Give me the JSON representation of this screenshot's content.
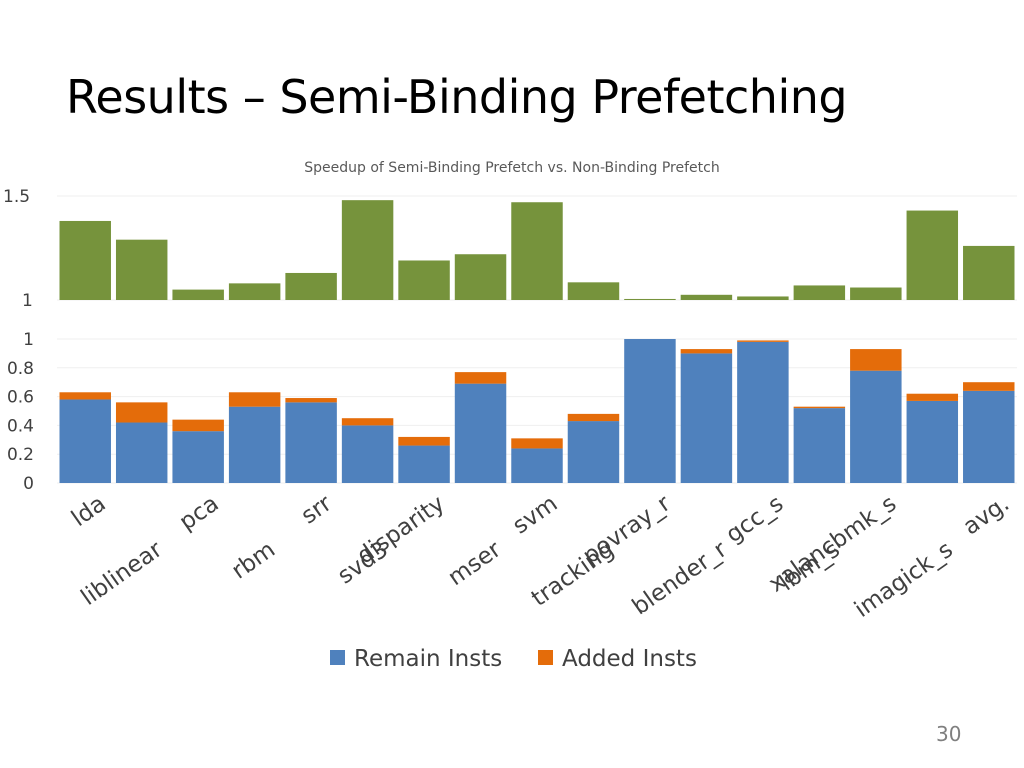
{
  "slide": {
    "title": "Results – Semi-Binding Prefetching",
    "page_number": "30"
  },
  "colors": {
    "speedup": "#76933c",
    "remain": "#4f81bd",
    "added": "#e46c0a",
    "grid": "#efefef"
  },
  "chart_data": [
    {
      "type": "bar",
      "title": "Speedup of Semi-Binding Prefetch vs. Non-Binding Prefetch",
      "categories": [
        "lda",
        "liblinear",
        "pca",
        "rbm",
        "srr",
        "svd3",
        "disparity",
        "mser",
        "svm",
        "tracking",
        "povray_r",
        "blender_r",
        "gcc_s",
        "lbm_s",
        "xalancbmk_s",
        "imagick_s",
        "avg."
      ],
      "series": [
        {
          "values": [
            1.38,
            1.29,
            1.05,
            1.08,
            1.13,
            1.48,
            1.19,
            1.22,
            1.47,
            1.085,
            1.005,
            1.025,
            1.017,
            1.07,
            1.06,
            1.43,
            1.26
          ]
        }
      ],
      "ylim": [
        1,
        1.5
      ],
      "yticks": [
        "1",
        "1.5"
      ],
      "grid": true
    },
    {
      "type": "bar",
      "stacked": true,
      "categories": [
        "lda",
        "liblinear",
        "pca",
        "rbm",
        "srr",
        "svd3",
        "disparity",
        "mser",
        "svm",
        "tracking",
        "povray_r",
        "blender_r",
        "gcc_s",
        "lbm_s",
        "xalancbmk_s",
        "imagick_s",
        "avg."
      ],
      "series": [
        {
          "name": "Remain Insts",
          "values": [
            0.58,
            0.42,
            0.36,
            0.53,
            0.56,
            0.4,
            0.26,
            0.69,
            0.24,
            0.43,
            1.0,
            0.9,
            0.98,
            0.52,
            0.78,
            0.57,
            0.64
          ]
        },
        {
          "name": "Added Insts",
          "values": [
            0.05,
            0.14,
            0.08,
            0.1,
            0.03,
            0.05,
            0.06,
            0.08,
            0.07,
            0.05,
            0.0,
            0.03,
            0.01,
            0.01,
            0.15,
            0.05,
            0.06
          ]
        }
      ],
      "ylim": [
        0,
        1
      ],
      "yticks": [
        "0",
        "0.2",
        "0.4",
        "0.6",
        "0.8",
        "1"
      ],
      "grid": true,
      "legend": "bottom"
    }
  ]
}
